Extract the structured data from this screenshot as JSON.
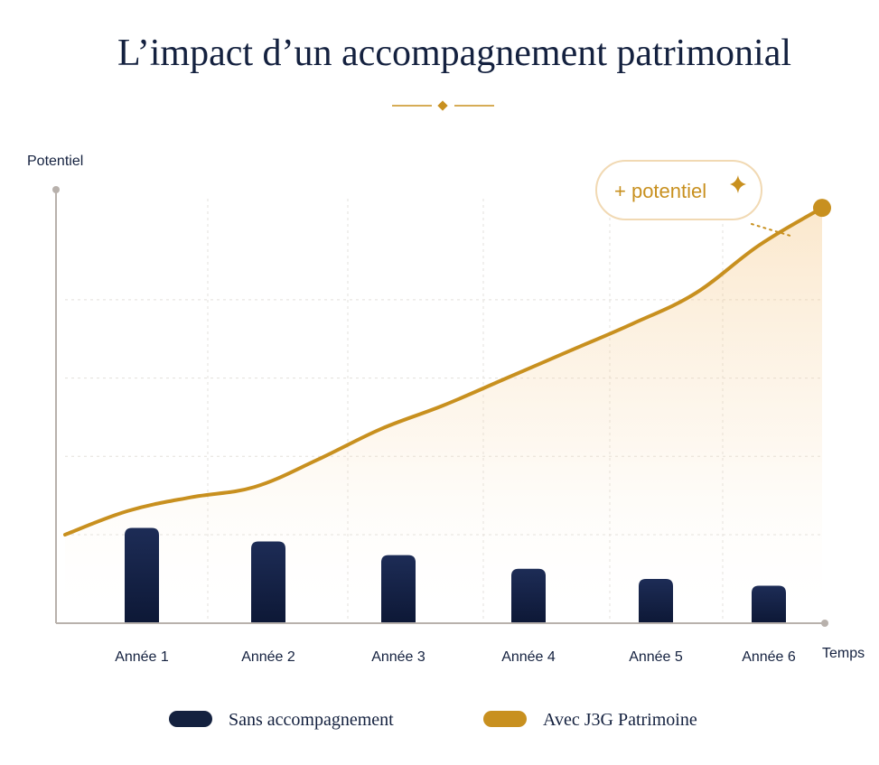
{
  "chart_data": {
    "type": "bar",
    "title": "L’impact d’un accompagnement patrimonial",
    "xlabel": "Temps",
    "ylabel": "Potentiel",
    "categories": [
      "Année 1",
      "Année 2",
      "Année 3",
      "Année 4",
      "Année 5",
      "Année 6"
    ],
    "series": [
      {
        "name": "Sans accompagnement",
        "type": "bar",
        "color": "#14213f",
        "values": [
          1.4,
          1.2,
          1.0,
          0.8,
          0.65,
          0.55
        ]
      },
      {
        "name": "Avec J3G Patrimoine",
        "type": "area-line",
        "color": "#c8901f",
        "x": [
          0,
          0.5,
          1,
          1.5,
          2,
          2.5,
          3,
          3.5,
          4,
          4.5,
          5,
          5.5,
          6
        ],
        "values": [
          1.3,
          1.65,
          1.85,
          2.0,
          2.4,
          2.85,
          3.2,
          3.6,
          4.0,
          4.4,
          4.85,
          5.55,
          6.1
        ]
      }
    ],
    "ylim": [
      0,
      6.5
    ],
    "grid": true,
    "legend_position": "bottom",
    "annotation": {
      "text": "+ potentiel",
      "icon": "sparkle-icon",
      "target_series": "Avec J3G Patrimoine"
    }
  }
}
